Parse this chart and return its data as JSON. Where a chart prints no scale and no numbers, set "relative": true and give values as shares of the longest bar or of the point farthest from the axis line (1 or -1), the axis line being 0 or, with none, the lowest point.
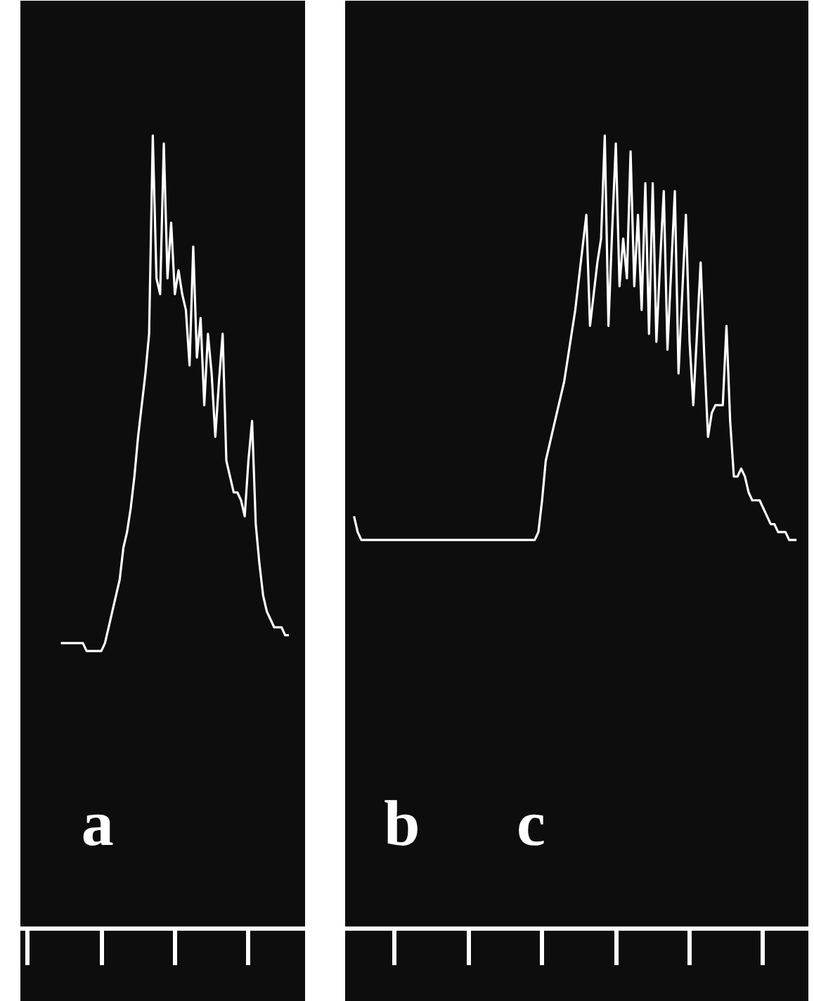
{
  "chart_data": [
    {
      "type": "line",
      "relative": true,
      "categories": [
        null,
        null,
        null,
        null,
        null,
        null,
        null,
        null,
        null,
        null,
        null,
        null,
        null,
        null,
        null,
        null,
        null,
        null,
        null,
        null,
        null,
        null,
        null,
        null,
        null,
        null,
        null,
        null,
        null,
        null,
        null,
        null,
        null,
        null,
        null,
        null,
        null,
        null,
        null,
        null,
        null,
        null,
        null,
        null,
        null,
        null,
        null,
        null,
        null,
        null,
        null,
        null,
        null,
        null,
        null,
        null,
        null,
        null,
        null,
        null,
        null,
        null,
        null
      ],
      "series": [
        {
          "color": "#ffffff",
          "values": [
            0.36,
            0.36,
            0.36,
            0.36,
            0.36,
            0.36,
            0.36,
            0.35,
            0.35,
            0.35,
            0.35,
            0.35,
            0.36,
            0.38,
            0.4,
            0.42,
            0.44,
            0.48,
            0.5,
            0.53,
            0.57,
            0.62,
            0.66,
            0.7,
            0.75,
            1.0,
            0.82,
            0.8,
            0.99,
            0.82,
            0.89,
            0.8,
            0.83,
            0.8,
            0.78,
            0.71,
            0.86,
            0.72,
            0.77,
            0.66,
            0.75,
            0.7,
            0.62,
            0.69,
            0.75,
            0.59,
            0.57,
            0.55,
            0.55,
            0.54,
            0.52,
            0.59,
            0.64,
            0.51,
            0.46,
            0.42,
            0.4,
            0.39,
            0.38,
            0.38,
            0.38,
            0.37,
            0.37
          ]
        }
      ],
      "annotations": [
        "a"
      ]
    },
    {
      "type": "line",
      "relative": true,
      "categories": [
        null,
        null,
        null,
        null,
        null,
        null,
        null,
        null,
        null,
        null,
        null,
        null,
        null,
        null,
        null,
        null,
        null,
        null,
        null,
        null,
        null,
        null,
        null,
        null,
        null,
        null,
        null,
        null,
        null,
        null,
        null,
        null,
        null,
        null,
        null,
        null,
        null,
        null,
        null,
        null,
        null,
        null,
        null,
        null,
        null,
        null,
        null,
        null,
        null,
        null,
        null,
        null,
        null,
        null,
        null,
        null,
        null,
        null,
        null,
        null,
        null,
        null,
        null,
        null,
        null,
        null,
        null,
        null,
        null,
        null,
        null,
        null,
        null,
        null,
        null,
        null,
        null,
        null,
        null,
        null,
        null,
        null,
        null,
        null,
        null,
        null,
        null,
        null,
        null,
        null,
        null,
        null,
        null,
        null,
        null,
        null,
        null,
        null,
        null,
        null,
        null,
        null,
        null,
        null,
        null,
        null,
        null,
        null,
        null,
        null,
        null,
        null,
        null,
        null,
        null,
        null,
        null,
        null,
        null,
        null,
        null
      ],
      "series": [
        {
          "color": "#ffffff",
          "values": [
            0.52,
            0.5,
            0.49,
            0.49,
            0.49,
            0.49,
            0.49,
            0.49,
            0.49,
            0.49,
            0.49,
            0.49,
            0.49,
            0.49,
            0.49,
            0.49,
            0.49,
            0.49,
            0.49,
            0.49,
            0.49,
            0.49,
            0.49,
            0.49,
            0.49,
            0.49,
            0.49,
            0.49,
            0.49,
            0.49,
            0.49,
            0.49,
            0.49,
            0.49,
            0.49,
            0.49,
            0.49,
            0.49,
            0.49,
            0.49,
            0.49,
            0.49,
            0.49,
            0.49,
            0.49,
            0.49,
            0.49,
            0.49,
            0.49,
            0.49,
            0.5,
            0.54,
            0.59,
            0.61,
            0.63,
            0.65,
            0.67,
            0.69,
            0.72,
            0.75,
            0.78,
            0.82,
            0.86,
            0.9,
            0.76,
            0.8,
            0.84,
            0.87,
            1.0,
            0.76,
            0.88,
            0.99,
            0.81,
            0.87,
            0.82,
            0.98,
            0.81,
            0.9,
            0.78,
            0.94,
            0.75,
            0.94,
            0.74,
            0.84,
            0.93,
            0.73,
            0.83,
            0.93,
            0.7,
            0.8,
            0.9,
            0.74,
            0.66,
            0.75,
            0.84,
            0.72,
            0.62,
            0.65,
            0.66,
            0.66,
            0.66,
            0.76,
            0.64,
            0.57,
            0.57,
            0.58,
            0.57,
            0.55,
            0.54,
            0.54,
            0.54,
            0.53,
            0.52,
            0.51,
            0.51,
            0.5,
            0.5,
            0.5,
            0.49,
            0.49,
            0.49
          ]
        }
      ],
      "annotations": [
        "b",
        "c"
      ]
    }
  ]
}
